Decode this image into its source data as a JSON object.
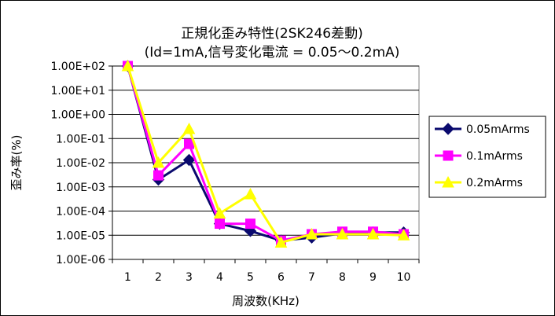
{
  "chart_data": {
    "type": "line",
    "title": "正規化歪み特性(2SK246差動)",
    "subtitle": "(Id=1mA,信号変化電流 = 0.05～0.2mA)",
    "xlabel": "周波数(KHz)",
    "ylabel": "歪み率(%)",
    "y_scale": "log",
    "ylim": [
      1e-06,
      100
    ],
    "y_ticks": [
      100,
      10,
      1,
      0.1,
      0.01,
      0.001,
      0.0001,
      1e-05,
      1e-06
    ],
    "y_tick_labels": [
      "1.00E+02",
      "1.00E+01",
      "1.00E+00",
      "1.00E-01",
      "1.00E-02",
      "1.00E-03",
      "1.00E-04",
      "1.00E-05",
      "1.00E-06"
    ],
    "categories": [
      "1",
      "2",
      "3",
      "4",
      "5",
      "6",
      "7",
      "8",
      "9",
      "10"
    ],
    "grid": "horizontal",
    "legend_position": "right",
    "series": [
      {
        "name": "0.05mArms",
        "color": "#0a0a6e",
        "marker": "diamond",
        "values": [
          100,
          0.002,
          0.013,
          3e-05,
          1.5e-05,
          6e-06,
          8e-06,
          1.2e-05,
          1.3e-05,
          1.3e-05
        ]
      },
      {
        "name": "0.1mArms",
        "color": "#ff00ff",
        "marker": "square",
        "values": [
          100,
          0.003,
          0.06,
          3e-05,
          3e-05,
          6e-06,
          1.1e-05,
          1.4e-05,
          1.4e-05,
          1.1e-05
        ]
      },
      {
        "name": "0.2mArms",
        "color": "#ffff00",
        "marker": "triangle",
        "values": [
          100,
          0.01,
          0.25,
          8e-05,
          0.0005,
          5e-06,
          1.1e-05,
          1.1e-05,
          1.1e-05,
          1e-05
        ]
      }
    ]
  }
}
